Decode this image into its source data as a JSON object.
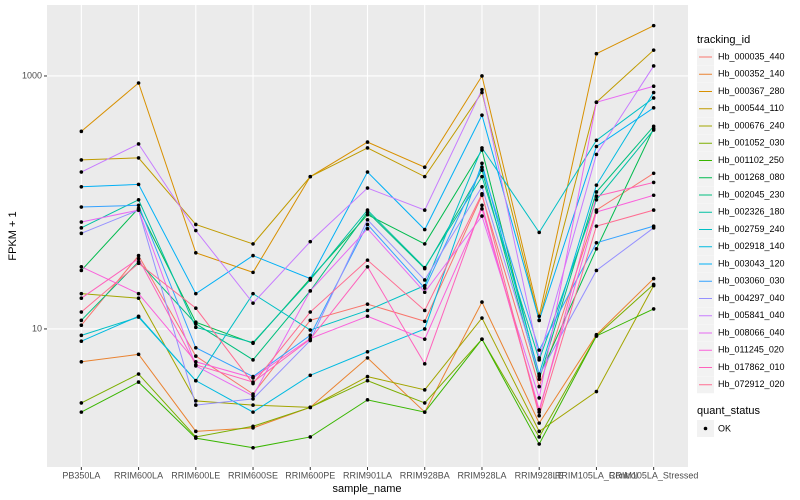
{
  "chart_data": {
    "type": "line",
    "x_label": "sample_name",
    "y_label": "FPKM + 1",
    "log_y": true,
    "grid": true,
    "legend_position": "right",
    "legend_title": "tracking_id",
    "point_legend_title": "quant_status",
    "point_legend_label": "OK",
    "point_color": "#000000",
    "categories": [
      "PB350LA",
      "RRIM600LA",
      "RRIM600LE",
      "RRIM600SE",
      "RRIM600PE",
      "RRIM901LA",
      "RRIM928BA",
      "RRIM928LA",
      "RRIM928LE",
      "RRIM105LA_Control",
      "RRIM105LA_Stressed"
    ],
    "ylim": [
      0.81,
      3640
    ],
    "yticks": [
      10,
      1000
    ],
    "series": [
      {
        "name": "Hb_000035_440",
        "color": "#F8766D",
        "values": [
          10.7,
          38,
          6.1,
          3.06,
          11.7,
          15.7,
          11.5,
          114,
          3.5,
          87,
          170
        ]
      },
      {
        "name": "Hb_000352_140",
        "color": "#EA8331",
        "values": [
          5.5,
          6.3,
          1.55,
          1.65,
          2.4,
          5.9,
          2.2,
          16.3,
          1.8,
          9,
          25
        ]
      },
      {
        "name": "Hb_000367_280",
        "color": "#D89000",
        "values": [
          365,
          880,
          40,
          28,
          160,
          300,
          190,
          1000,
          12.6,
          1500,
          2500
        ]
      },
      {
        "name": "Hb_000544_110",
        "color": "#C09B00",
        "values": [
          217,
          225,
          67,
          47,
          160,
          270,
          160,
          740,
          11.7,
          620,
          1600
        ]
      },
      {
        "name": "Hb_000676_240",
        "color": "#A3A500",
        "values": [
          19,
          17.5,
          2.7,
          2.5,
          2.4,
          4.2,
          3.3,
          12.2,
          1.55,
          3.2,
          22
        ]
      },
      {
        "name": "Hb_001052_030",
        "color": "#7CAE00",
        "values": [
          2.6,
          4.4,
          1.4,
          1.7,
          2.4,
          3.9,
          2.6,
          8.3,
          1.4,
          8.8,
          22.5
        ]
      },
      {
        "name": "Hb_001102_250",
        "color": "#39B600",
        "values": [
          2.2,
          3.8,
          1.37,
          1.15,
          1.4,
          2.75,
          2.2,
          8.3,
          1.23,
          8.8,
          14.4
        ]
      },
      {
        "name": "Hb_001268_080",
        "color": "#00BB4E",
        "values": [
          29,
          90,
          11.3,
          7.7,
          25,
          80,
          47,
          260,
          4.2,
          43,
          385
        ]
      },
      {
        "name": "Hb_002045_230",
        "color": "#00BF7D",
        "values": [
          11.7,
          34,
          11,
          5.7,
          20,
          84,
          30,
          180,
          4,
          121,
          400
        ]
      },
      {
        "name": "Hb_002326_180",
        "color": "#00C1A3",
        "values": [
          63,
          105,
          10.3,
          7.8,
          24.4,
          87,
          30.5,
          160,
          5.7,
          105,
          374
        ]
      },
      {
        "name": "Hb_002759_240",
        "color": "#00BFC4",
        "values": [
          8.9,
          12.4,
          3.9,
          19,
          9.8,
          14,
          22,
          270,
          58,
          310,
          670
        ]
      },
      {
        "name": "Hb_002918_140",
        "color": "#00BAE0",
        "values": [
          8,
          12.6,
          3.9,
          2.2,
          4.3,
          6.6,
          10,
          204,
          4.4,
          137,
          740
        ]
      },
      {
        "name": "Hb_003043_120",
        "color": "#00B0F6",
        "values": [
          133,
          139,
          19,
          38,
          25,
          174,
          61,
          490,
          11.7,
          277,
          560
        ]
      },
      {
        "name": "Hb_003060_030",
        "color": "#35A2FF",
        "values": [
          92,
          95,
          7.1,
          4.2,
          8.9,
          67,
          21,
          190,
          6.8,
          48,
          65
        ]
      },
      {
        "name": "Hb_004297_040",
        "color": "#9590FF",
        "values": [
          57,
          87,
          2.5,
          2.8,
          8.1,
          73,
          24.4,
          133,
          4.3,
          29,
          63
        ]
      },
      {
        "name": "Hb_005841_040",
        "color": "#C77CFF",
        "values": [
          174,
          290,
          60,
          16,
          49,
          130,
          87,
          780,
          5.9,
          240,
          1200
        ]
      },
      {
        "name": "Hb_008066_040",
        "color": "#E76BF3",
        "values": [
          70,
          87,
          5.1,
          2.95,
          20,
          62,
          19.5,
          78,
          2.85,
          620,
          830
        ]
      },
      {
        "name": "Hb_011245_020",
        "color": "#FA62DB",
        "values": [
          31,
          19,
          5.5,
          4.1,
          8.4,
          12.6,
          8.3,
          89,
          2.3,
          84,
          114
        ]
      },
      {
        "name": "Hb_017862_010",
        "color": "#FF62BC",
        "values": [
          17.5,
          36,
          5.2,
          3.8,
          8.3,
          31,
          5.3,
          95,
          2.2,
          112,
          144
        ]
      },
      {
        "name": "Hb_072912_020",
        "color": "#FF6C91",
        "values": [
          13.6,
          33,
          14.6,
          3.7,
          13.6,
          35,
          14,
          117,
          2.06,
          65,
          87
        ]
      }
    ]
  }
}
